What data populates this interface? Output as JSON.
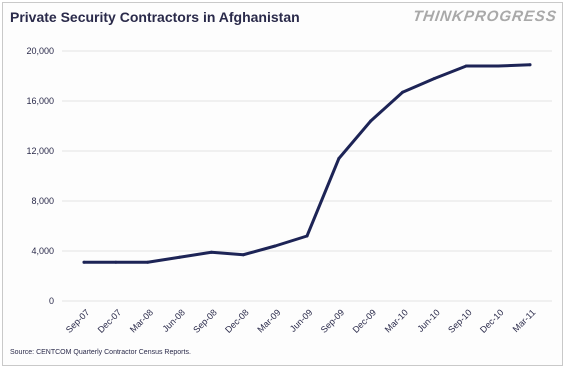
{
  "header": {
    "title": "Private Security Contractors in Afghanistan",
    "brand": "THINKPROGRESS"
  },
  "footer": {
    "source": "Source: CENTCOM Quarterly Contractor Census Reports."
  },
  "colors": {
    "line": "#1d2456",
    "grid": "#e2e2e2",
    "text": "#2a2a4a"
  },
  "chart_data": {
    "type": "line",
    "title": "Private Security Contractors in Afghanistan",
    "xlabel": "",
    "ylabel": "",
    "categories": [
      "Sep-07",
      "Dec-07",
      "Mar-08",
      "Jun-08",
      "Sep-08",
      "Dec-08",
      "Mar-09",
      "Jun-09",
      "Sep-09",
      "Dec-09",
      "Mar-10",
      "Jun-10",
      "Sep-10",
      "Dec-10",
      "Mar-11"
    ],
    "series": [
      {
        "values": [
          3100,
          3100,
          3100,
          3500,
          3900,
          3700,
          4400,
          5200,
          11400,
          14400,
          16700,
          17800,
          18800,
          18800,
          18900
        ]
      }
    ],
    "ylim": [
      0,
      20000
    ],
    "yticks": [
      0,
      4000,
      8000,
      12000,
      16000,
      20000
    ],
    "ytick_labels": [
      "0",
      "4,000",
      "8,000",
      "12,000",
      "16,000",
      "20,000"
    ],
    "grid": true,
    "legend": "none"
  }
}
